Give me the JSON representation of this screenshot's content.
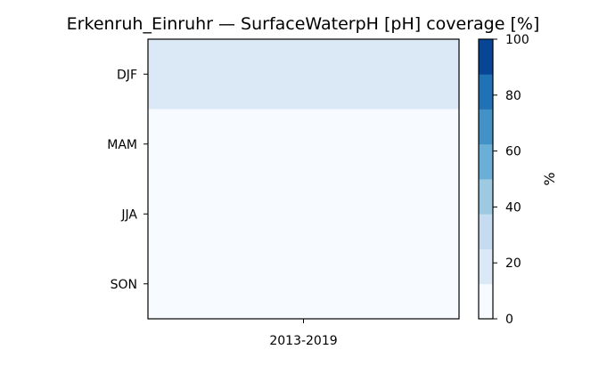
{
  "chart_data": {
    "type": "heatmap",
    "title": "Erkenruh_Einruhr — SurfaceWaterpH [pH] coverage [%]",
    "x_categories": [
      "2013-2019"
    ],
    "y_categories": [
      "DJF",
      "MAM",
      "JJA",
      "SON"
    ],
    "values": [
      [
        20
      ],
      [
        0
      ],
      [
        0
      ],
      [
        0
      ]
    ],
    "colorbar": {
      "label": "%",
      "range": [
        0,
        100
      ],
      "ticks": [
        0,
        20,
        40,
        60,
        80,
        100
      ],
      "bins": 8,
      "colors": [
        "#f7fbff",
        "#dbe9f6",
        "#c6dbef",
        "#9ecae1",
        "#6baed6",
        "#4292c6",
        "#2171b5",
        "#084594"
      ]
    }
  }
}
